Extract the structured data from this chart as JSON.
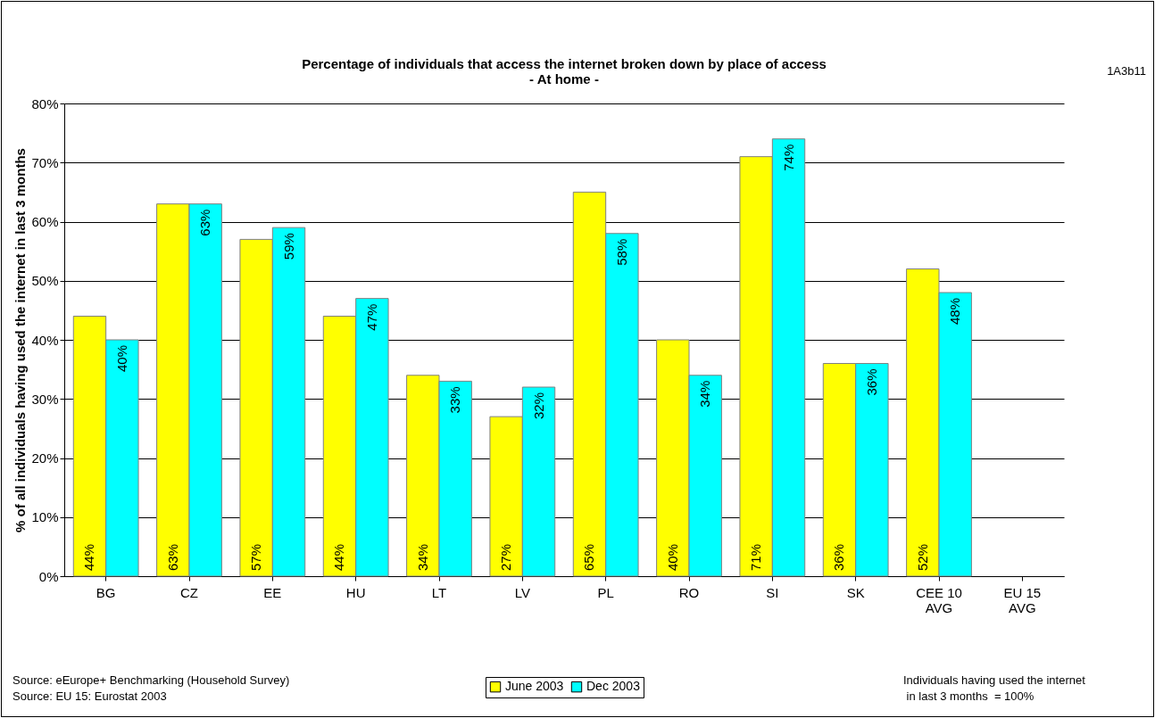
{
  "chart_data": {
    "type": "bar",
    "title": "Percentage of individuals that access the internet broken down by place of access",
    "subtitle": "- At home -",
    "ylabel": "% of all individuals having used the internet in last 3 months",
    "categories": [
      "BG",
      "CZ",
      "EE",
      "HU",
      "LT",
      "LV",
      "PL",
      "RO",
      "SI",
      "SK",
      "CEE 10 AVG",
      "EU 15 AVG"
    ],
    "series": [
      {
        "name": "June 2003",
        "color": "#ffff00",
        "values": [
          44,
          63,
          57,
          44,
          34,
          27,
          65,
          40,
          71,
          36,
          52,
          null
        ],
        "value_labels": [
          "44%",
          "63%",
          "57%",
          "44%",
          "34%",
          "27%",
          "65%",
          "40%",
          "71%",
          "36%",
          "52%",
          null
        ]
      },
      {
        "name": "Dec 2003",
        "color": "#00ffff",
        "values": [
          40,
          63,
          59,
          47,
          33,
          32,
          58,
          34,
          74,
          36,
          48,
          null
        ],
        "value_labels": [
          "40%",
          "63%",
          "59%",
          "47%",
          "33%",
          "32%",
          "58%",
          "34%",
          "74%",
          "36%",
          "48%",
          null
        ]
      }
    ],
    "ylim": [
      0,
      80
    ],
    "yticks": [
      {
        "value": 0,
        "label": "0%"
      },
      {
        "value": 10,
        "label": "10%"
      },
      {
        "value": 20,
        "label": "20%"
      },
      {
        "value": 30,
        "label": "30%"
      },
      {
        "value": 40,
        "label": "40%"
      },
      {
        "value": 50,
        "label": "50%"
      },
      {
        "value": 60,
        "label": "60%"
      },
      {
        "value": 70,
        "label": "70%"
      },
      {
        "value": 80,
        "label": "80%"
      }
    ],
    "grid": "y",
    "legend": "bottom",
    "annotations": [
      "1A3b11",
      "Source: eEurope+ Benchmarking (Household Survey)",
      "Source: EU 15: Eurostat 2003",
      "Individuals having used the internet\n in last 3 months  = 100%"
    ]
  }
}
